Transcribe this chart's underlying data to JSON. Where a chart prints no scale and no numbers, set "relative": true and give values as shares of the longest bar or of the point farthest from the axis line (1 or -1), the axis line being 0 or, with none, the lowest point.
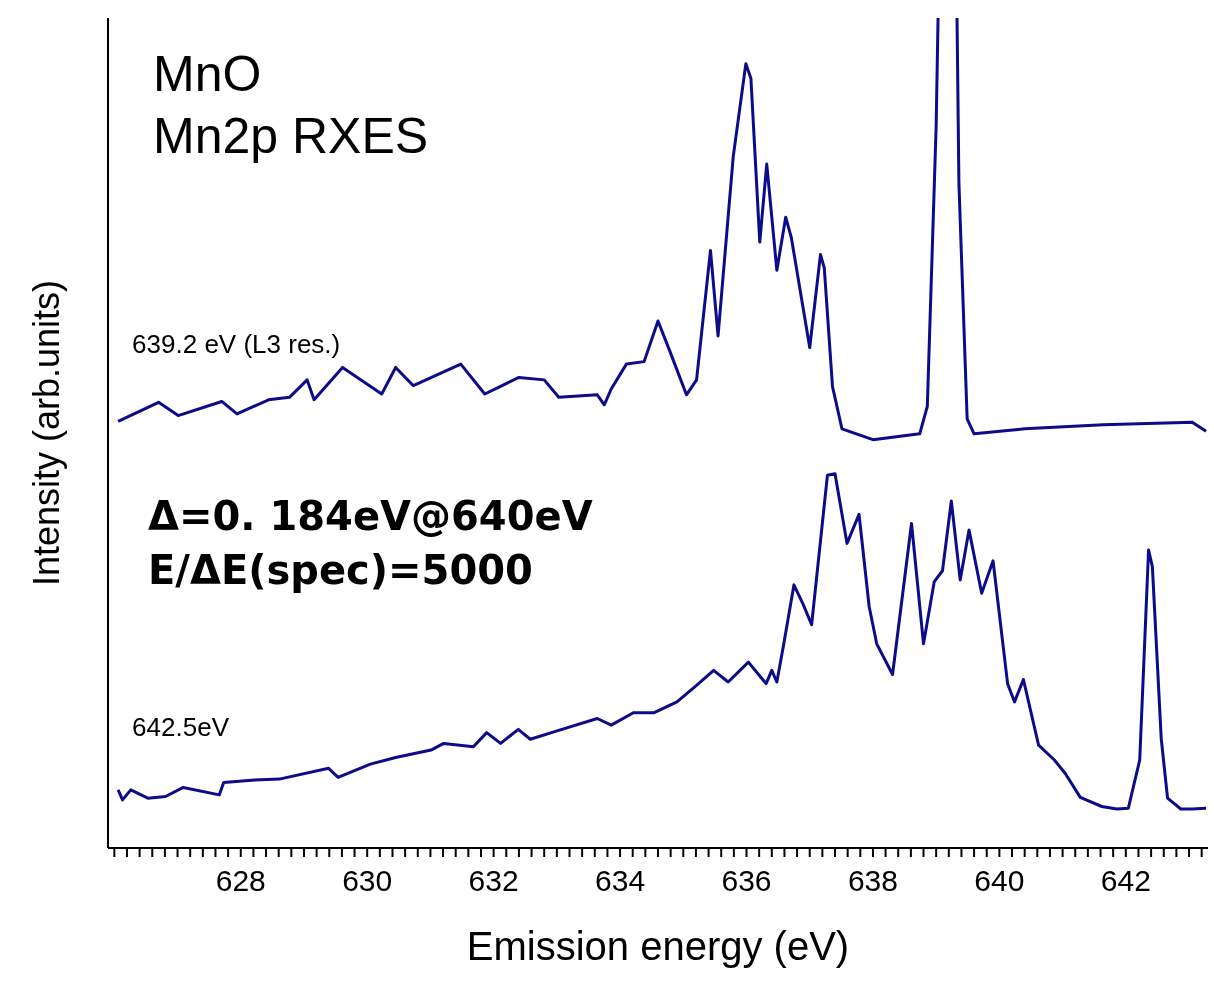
{
  "chart_data": {
    "type": "line",
    "title": "MnO",
    "subtitle": "Mn2p RXES",
    "xlabel": "Emission energy (eV)",
    "ylabel": "Intensity (arb.units)",
    "annotations": [
      "Δ=0. 184eV@640eV",
      "E/ΔE(spec)=5000"
    ],
    "relative": true,
    "xlim": [
      625.9,
      643.3
    ],
    "xticks": [
      {
        "value": 626,
        "label": null
      },
      {
        "value": 626.2,
        "label": null
      },
      {
        "value": 626.4,
        "label": null
      },
      {
        "value": 626.6,
        "label": null
      },
      {
        "value": 626.8,
        "label": null
      },
      {
        "value": 627,
        "label": null
      },
      {
        "value": 627.2,
        "label": null
      },
      {
        "value": 627.4,
        "label": null
      },
      {
        "value": 627.6,
        "label": null
      },
      {
        "value": 627.8,
        "label": null
      },
      628,
      {
        "value": 628.2,
        "label": null
      },
      {
        "value": 628.4,
        "label": null
      },
      {
        "value": 628.6,
        "label": null
      },
      {
        "value": 628.8,
        "label": null
      },
      {
        "value": 629,
        "label": null
      },
      {
        "value": 629.2,
        "label": null
      },
      {
        "value": 629.4,
        "label": null
      },
      {
        "value": 629.6,
        "label": null
      },
      {
        "value": 629.8,
        "label": null
      },
      630,
      {
        "value": 630.2,
        "label": null
      },
      {
        "value": 630.4,
        "label": null
      },
      {
        "value": 630.6,
        "label": null
      },
      {
        "value": 630.8,
        "label": null
      },
      {
        "value": 631,
        "label": null
      },
      {
        "value": 631.2,
        "label": null
      },
      {
        "value": 631.4,
        "label": null
      },
      {
        "value": 631.6,
        "label": null
      },
      {
        "value": 631.8,
        "label": null
      },
      632,
      {
        "value": 632.2,
        "label": null
      },
      {
        "value": 632.4,
        "label": null
      },
      {
        "value": 632.6,
        "label": null
      },
      {
        "value": 632.8,
        "label": null
      },
      {
        "value": 633,
        "label": null
      },
      {
        "value": 633.2,
        "label": null
      },
      {
        "value": 633.4,
        "label": null
      },
      {
        "value": 633.6,
        "label": null
      },
      {
        "value": 633.8,
        "label": null
      },
      634,
      {
        "value": 634.2,
        "label": null
      },
      {
        "value": 634.4,
        "label": null
      },
      {
        "value": 634.6,
        "label": null
      },
      {
        "value": 634.8,
        "label": null
      },
      {
        "value": 635,
        "label": null
      },
      {
        "value": 635.2,
        "label": null
      },
      {
        "value": 635.4,
        "label": null
      },
      {
        "value": 635.6,
        "label": null
      },
      {
        "value": 635.8,
        "label": null
      },
      636,
      {
        "value": 636.2,
        "label": null
      },
      {
        "value": 636.4,
        "label": null
      },
      {
        "value": 636.6,
        "label": null
      },
      {
        "value": 636.8,
        "label": null
      },
      {
        "value": 637,
        "label": null
      },
      {
        "value": 637.2,
        "label": null
      },
      {
        "value": 637.4,
        "label": null
      },
      {
        "value": 637.6,
        "label": null
      },
      {
        "value": 637.8,
        "label": null
      },
      638,
      {
        "value": 638.2,
        "label": null
      },
      {
        "value": 638.4,
        "label": null
      },
      {
        "value": 638.6,
        "label": null
      },
      {
        "value": 638.8,
        "label": null
      },
      {
        "value": 639,
        "label": null
      },
      {
        "value": 639.2,
        "label": null
      },
      {
        "value": 639.4,
        "label": null
      },
      {
        "value": 639.6,
        "label": null
      },
      {
        "value": 639.8,
        "label": null
      },
      640,
      {
        "value": 640.2,
        "label": null
      },
      {
        "value": 640.4,
        "label": null
      },
      {
        "value": 640.6,
        "label": null
      },
      {
        "value": 640.8,
        "label": null
      },
      {
        "value": 641,
        "label": null
      },
      {
        "value": 641.2,
        "label": null
      },
      {
        "value": 641.4,
        "label": null
      },
      {
        "value": 641.6,
        "label": null
      },
      {
        "value": 641.8,
        "label": null
      },
      642,
      {
        "value": 642.2,
        "label": null
      },
      {
        "value": 642.4,
        "label": null
      },
      {
        "value": 642.6,
        "label": null
      },
      {
        "value": 642.8,
        "label": null
      },
      {
        "value": 643,
        "label": null
      },
      {
        "value": 643.2,
        "label": null
      }
    ],
    "series": [
      {
        "name": "639.2 eV (L3 res.)",
        "color": "#0c0c8a",
        "x": [
          626.06,
          626.7,
          627.01,
          627.7,
          627.94,
          628.44,
          628.77,
          629.05,
          629.16,
          629.61,
          630.23,
          630.45,
          630.73,
          631.48,
          631.86,
          632.4,
          632.8,
          633.03,
          633.64,
          633.75,
          633.86,
          634.1,
          634.38,
          634.6,
          634.79,
          635.05,
          635.21,
          635.43,
          635.55,
          635.79,
          635.99,
          636.07,
          636.21,
          636.32,
          636.48,
          636.62,
          636.71,
          637.0,
          637.17,
          637.23,
          637.36,
          637.51,
          638.0,
          638.74,
          638.86,
          639.0,
          639.03,
          639.18,
          639.33,
          639.36,
          639.49,
          639.6,
          640.4,
          641.64,
          643.05,
          643.27
        ],
        "values": [
          0.514,
          0.537,
          0.521,
          0.538,
          0.523,
          0.54,
          0.543,
          0.564,
          0.54,
          0.579,
          0.547,
          0.579,
          0.557,
          0.583,
          0.547,
          0.567,
          0.564,
          0.543,
          0.546,
          0.534,
          0.553,
          0.583,
          0.586,
          0.635,
          0.598,
          0.546,
          0.564,
          0.72,
          0.617,
          0.833,
          0.945,
          0.927,
          0.73,
          0.824,
          0.696,
          0.76,
          0.735,
          0.603,
          0.715,
          0.699,
          0.556,
          0.505,
          0.492,
          0.499,
          0.532,
          0.87,
          1,
          null,
          1,
          0.801,
          0.517,
          0.499,
          0.505,
          0.51,
          0.513,
          0.502
        ]
      },
      {
        "name": "642.5eV",
        "color": "#0c0c8a",
        "x": [
          626.06,
          626.13,
          626.26,
          626.53,
          626.81,
          627.09,
          627.66,
          627.73,
          628.22,
          628.61,
          629.39,
          629.54,
          630.05,
          630.45,
          631.01,
          631.21,
          631.68,
          631.89,
          632.11,
          632.39,
          632.58,
          633.08,
          633.64,
          633.86,
          634.21,
          634.54,
          634.9,
          635.21,
          635.48,
          635.71,
          636.03,
          636.31,
          636.4,
          636.48,
          636.59,
          636.75,
          636.9,
          637.03,
          637.28,
          637.4,
          637.59,
          637.78,
          637.94,
          638.06,
          638.31,
          638.61,
          638.8,
          638.97,
          639.1,
          639.24,
          639.38,
          639.52,
          639.72,
          639.9,
          640.13,
          640.24,
          640.38,
          640.62,
          640.87,
          641.04,
          641.28,
          641.62,
          641.86,
          642.04,
          642.22,
          642.36,
          642.42,
          642.56,
          642.66,
          642.87,
          643.05,
          643.27
        ],
        "values": [
          0.07,
          0.058,
          0.07,
          0.06,
          0.062,
          0.073,
          0.064,
          0.079,
          0.082,
          0.083,
          0.096,
          0.085,
          0.101,
          0.109,
          0.118,
          0.126,
          0.122,
          0.139,
          0.126,
          0.143,
          0.131,
          0.143,
          0.156,
          0.148,
          0.163,
          0.163,
          0.176,
          0.196,
          0.214,
          0.2,
          0.224,
          0.198,
          0.214,
          0.2,
          0.246,
          0.317,
          0.293,
          0.269,
          0.449,
          0.451,
          0.367,
          0.402,
          0.291,
          0.246,
          0.209,
          0.391,
          0.246,
          0.321,
          0.334,
          0.418,
          0.323,
          0.383,
          0.307,
          0.346,
          0.198,
          0.176,
          0.203,
          0.124,
          0.106,
          0.09,
          0.061,
          0.05,
          0.047,
          0.048,
          0.106,
          0.359,
          0.339,
          0.132,
          0.06,
          0.047,
          0.047,
          0.048
        ]
      }
    ]
  }
}
